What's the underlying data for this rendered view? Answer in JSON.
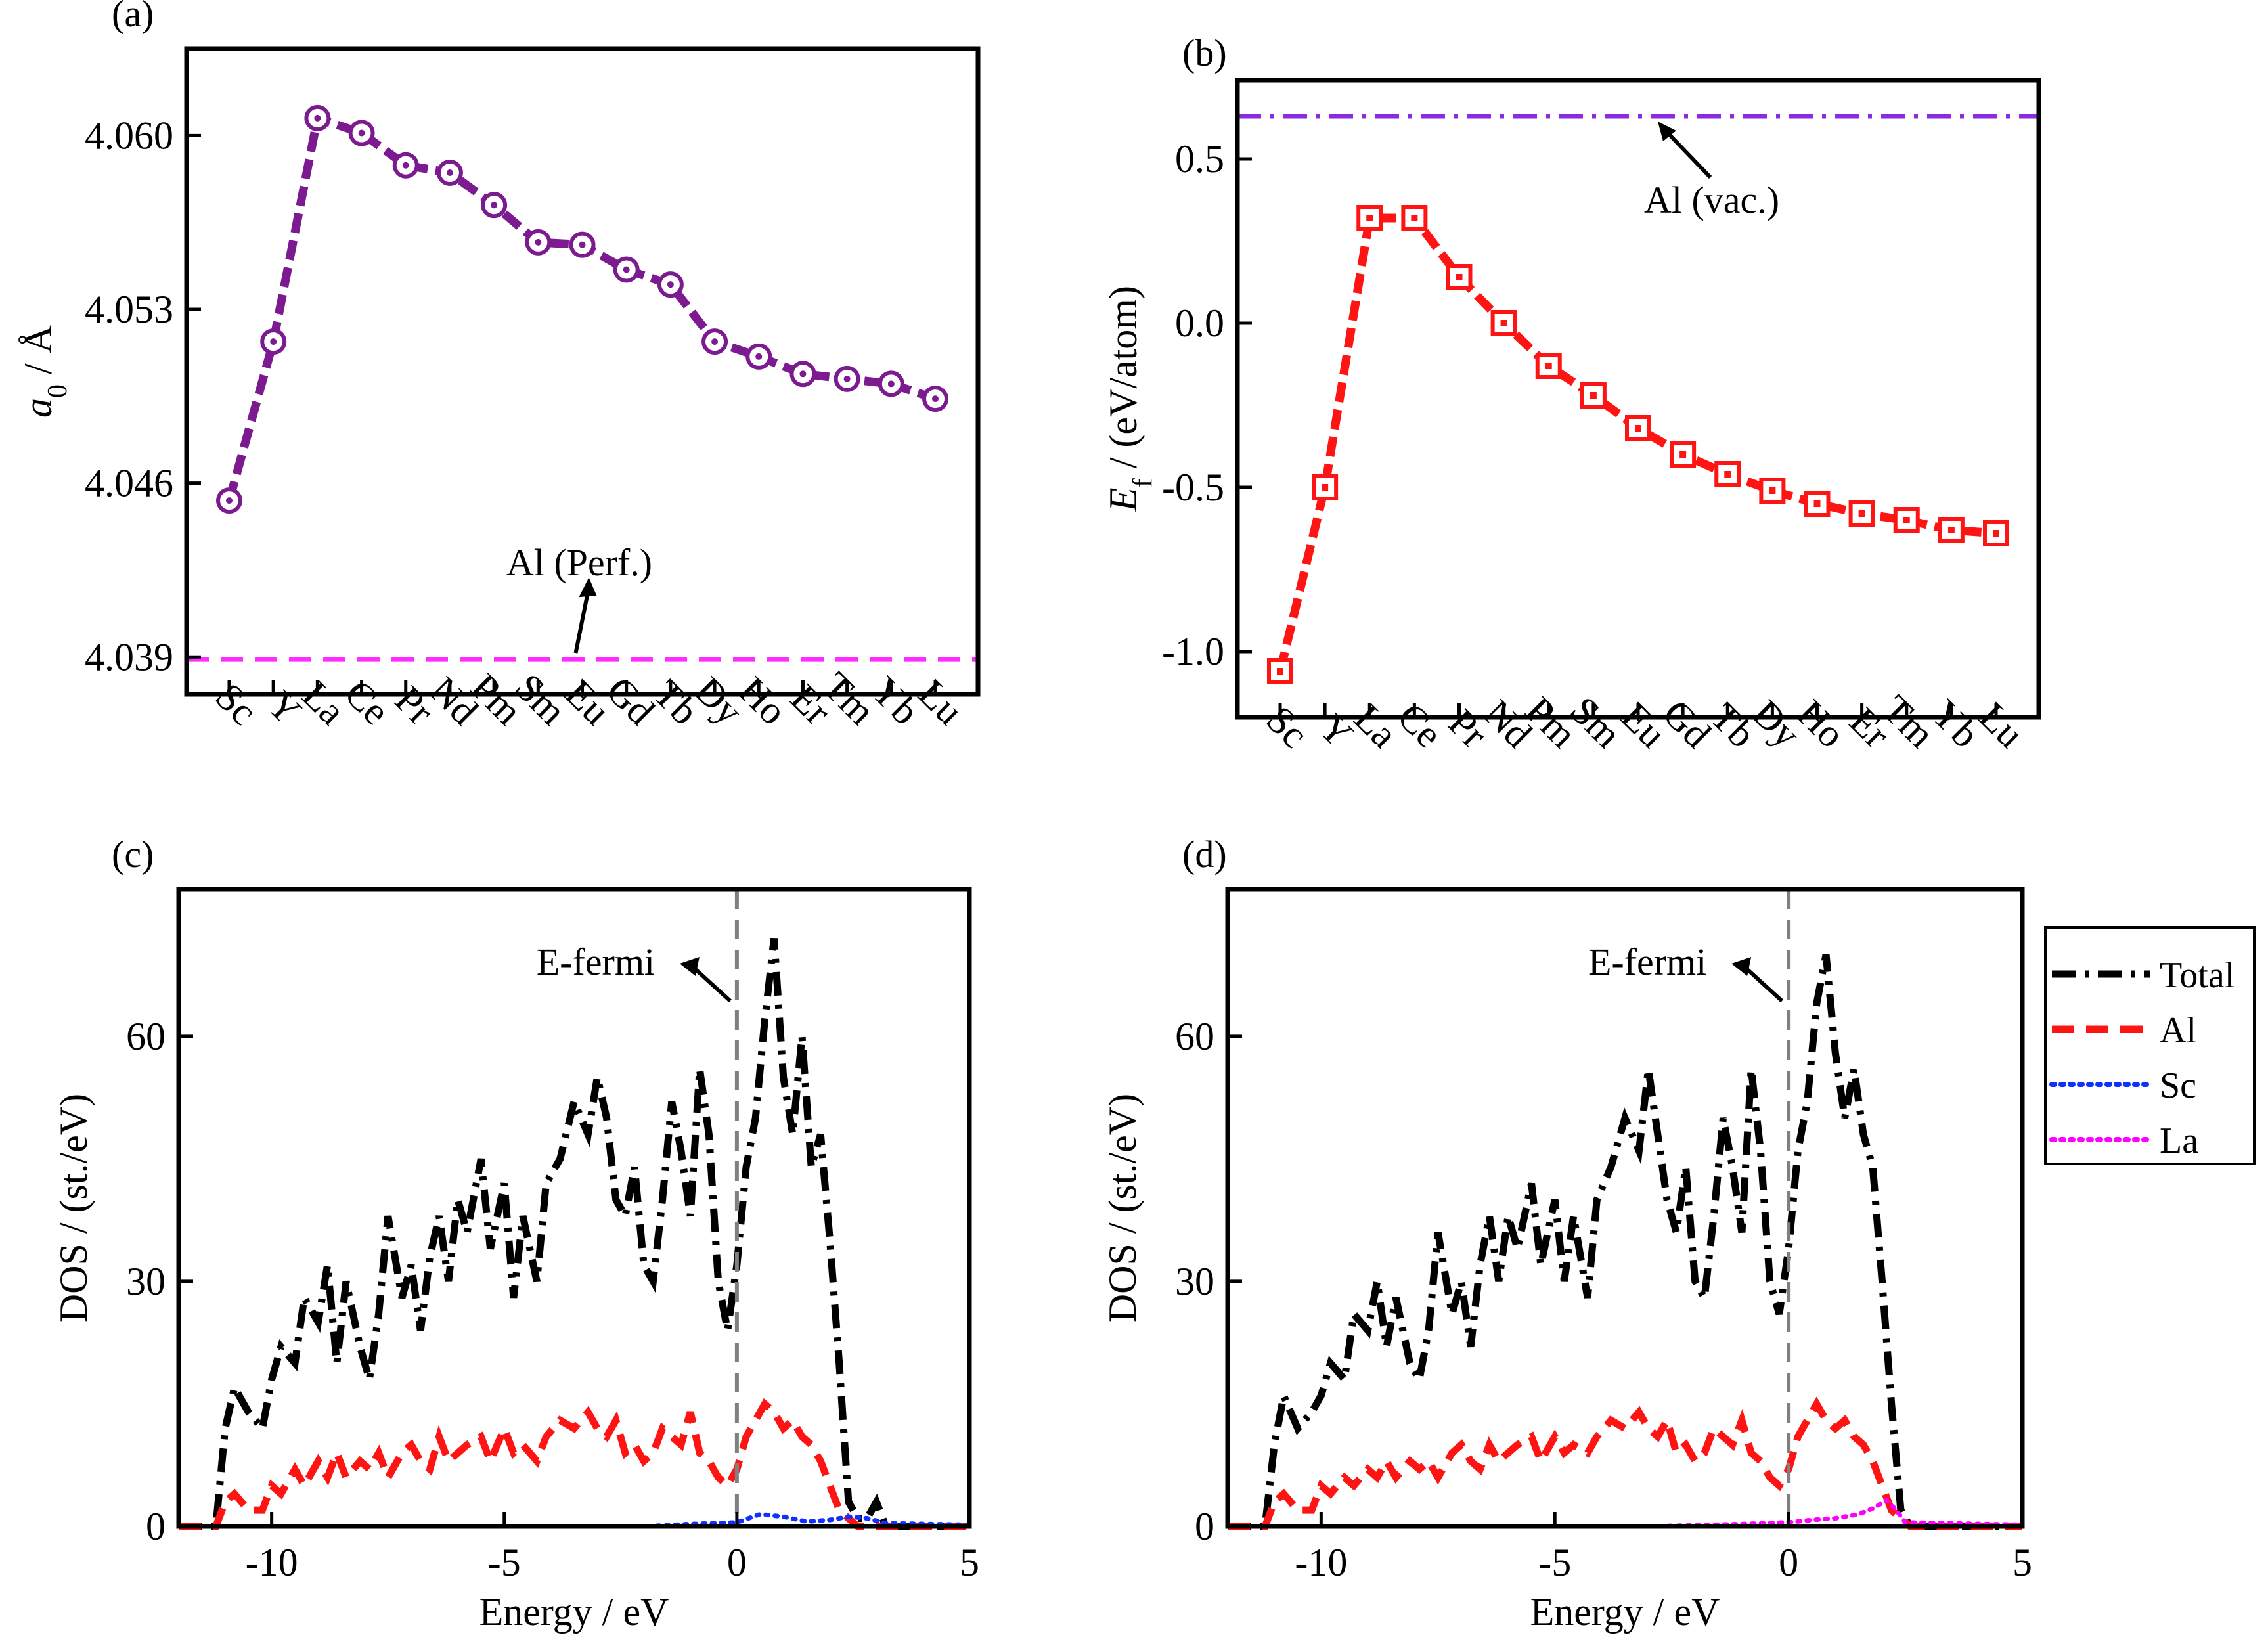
{
  "chart_data": [
    {
      "panel": "(a)",
      "type": "line",
      "xlabel": "",
      "ylabel_var": "a",
      "ylabel_sub": "0",
      "ylabel_rest": " / Å",
      "categories": [
        "Sc",
        "Y",
        "La",
        "Ce",
        "Pr",
        "Nd",
        "Pm",
        "Sm",
        "Eu",
        "Gd",
        "Tb",
        "Dy",
        "Ho",
        "Er",
        "Tm",
        "Yb",
        "Lu"
      ],
      "values": [
        4.0453,
        4.0517,
        4.0607,
        4.0601,
        4.0588,
        4.0585,
        4.0572,
        4.0557,
        4.0556,
        4.0546,
        4.054,
        4.0517,
        4.0511,
        4.0504,
        4.0502,
        4.05,
        4.0494
      ],
      "ylim": [
        4.0375,
        4.0635
      ],
      "yticks": [
        "4.039",
        "4.046",
        "4.053",
        "4.060"
      ],
      "ytick_values": [
        4.039,
        4.046,
        4.053,
        4.06
      ],
      "series_color": "#7b1b8f",
      "marker": "circle-dot",
      "reference_line": {
        "label": "Al (Perf.)",
        "value": 4.0389,
        "color": "#ff2cff",
        "style": "dash"
      }
    },
    {
      "panel": "(b)",
      "type": "line",
      "xlabel": "",
      "ylabel_var": "E",
      "ylabel_sub": "f",
      "ylabel_rest": " / (eV/atom)",
      "categories": [
        "Sc",
        "Y",
        "La",
        "Ce",
        "Pr",
        "Nd",
        "Pm",
        "Sm",
        "Eu",
        "Gd",
        "Tb",
        "Dy",
        "Ho",
        "Er",
        "Tm",
        "Yb",
        "Lu"
      ],
      "values": [
        -1.06,
        -0.5,
        0.32,
        0.32,
        0.14,
        0.0,
        -0.13,
        -0.22,
        -0.32,
        -0.4,
        -0.46,
        -0.51,
        -0.55,
        -0.58,
        -0.6,
        -0.63,
        -0.64
      ],
      "ylim": [
        -1.2,
        0.74
      ],
      "yticks": [
        "-1.0",
        "-0.5",
        "0.0",
        "0.5"
      ],
      "ytick_values": [
        -1.0,
        -0.5,
        0.0,
        0.5
      ],
      "series_color": "#ff1414",
      "marker": "square-dot",
      "reference_line": {
        "label": "Al (vac.)",
        "value": 0.63,
        "color": "#8a2be2",
        "style": "dashdot"
      }
    },
    {
      "panel": "(c)",
      "type": "line",
      "xlabel": "Energy / eV",
      "ylabel": "DOS / (st./eV)",
      "xlim": [
        -12,
        5
      ],
      "ylim": [
        0,
        78
      ],
      "xticks": [
        "-10",
        "-5",
        "0",
        "5"
      ],
      "xtick_values": [
        -10,
        -5,
        0,
        5
      ],
      "yticks": [
        "0",
        "30",
        "60"
      ],
      "ytick_values": [
        0,
        30,
        60
      ],
      "fermi_label": "E-fermi",
      "series": [
        {
          "name": "Total",
          "color": "#000000",
          "style": "dashdot",
          "x": [
            -12,
            -11.2,
            -11.0,
            -10.8,
            -10.5,
            -10.2,
            -10.0,
            -9.8,
            -9.5,
            -9.3,
            -9.0,
            -8.8,
            -8.6,
            -8.4,
            -8.1,
            -7.9,
            -7.7,
            -7.5,
            -7.2,
            -7.0,
            -6.8,
            -6.6,
            -6.4,
            -6.2,
            -6.0,
            -5.8,
            -5.5,
            -5.3,
            -5.0,
            -4.8,
            -4.6,
            -4.3,
            -4.1,
            -3.8,
            -3.5,
            -3.2,
            -3.0,
            -2.8,
            -2.6,
            -2.4,
            -2.2,
            -2.0,
            -1.8,
            -1.6,
            -1.4,
            -1.2,
            -1.0,
            -0.8,
            -0.6,
            -0.4,
            -0.2,
            0.0,
            0.2,
            0.4,
            0.6,
            0.8,
            1.0,
            1.2,
            1.4,
            1.6,
            1.8,
            2.0,
            2.2,
            2.4,
            2.6,
            2.8,
            3.0,
            3.2,
            5
          ],
          "y": [
            0,
            0,
            12,
            17,
            14,
            12,
            18,
            22,
            20,
            28,
            25,
            32,
            20,
            30,
            22,
            18,
            26,
            38,
            28,
            32,
            24,
            33,
            38,
            30,
            40,
            36,
            45,
            34,
            42,
            28,
            38,
            30,
            42,
            45,
            52,
            48,
            55,
            50,
            40,
            38,
            44,
            32,
            30,
            40,
            52,
            46,
            38,
            56,
            48,
            30,
            24,
            32,
            44,
            50,
            62,
            72,
            55,
            48,
            60,
            44,
            48,
            35,
            20,
            3,
            1,
            1,
            3,
            0,
            0
          ]
        },
        {
          "name": "Al",
          "color": "#ff1414",
          "style": "dash",
          "x": [
            -12,
            -11.2,
            -11.0,
            -10.8,
            -10.5,
            -10.2,
            -10.0,
            -9.8,
            -9.5,
            -9.3,
            -9.0,
            -8.8,
            -8.6,
            -8.4,
            -8.1,
            -7.9,
            -7.7,
            -7.5,
            -7.2,
            -7.0,
            -6.8,
            -6.6,
            -6.4,
            -6.2,
            -6.0,
            -5.8,
            -5.5,
            -5.3,
            -5.0,
            -4.8,
            -4.6,
            -4.3,
            -4.1,
            -3.8,
            -3.5,
            -3.2,
            -3.0,
            -2.8,
            -2.6,
            -2.4,
            -2.2,
            -2.0,
            -1.8,
            -1.6,
            -1.4,
            -1.2,
            -1.0,
            -0.8,
            -0.6,
            -0.4,
            -0.2,
            0.0,
            0.2,
            0.4,
            0.6,
            0.8,
            1.0,
            1.2,
            1.4,
            1.6,
            1.8,
            2.0,
            2.2,
            2.4,
            2.6,
            5
          ],
          "y": [
            0,
            0,
            3,
            4,
            2,
            2,
            5,
            4,
            7,
            5,
            8,
            6,
            9,
            6,
            8,
            7,
            9,
            6,
            9,
            10,
            8,
            7,
            11,
            8,
            9,
            10,
            11,
            8,
            12,
            9,
            10,
            8,
            11,
            13,
            12,
            14,
            12,
            11,
            13,
            9,
            10,
            8,
            9,
            12,
            11,
            10,
            14,
            9,
            8,
            6,
            5,
            7,
            11,
            13,
            15,
            14,
            12,
            13,
            11,
            10,
            8,
            5,
            2,
            1,
            0,
            0
          ]
        },
        {
          "name": "Sc",
          "color": "#1030ff",
          "style": "dot",
          "x": [
            -12,
            -2,
            -1,
            0,
            0.5,
            1,
            1.5,
            2,
            2.4,
            2.8,
            3.2,
            5
          ],
          "y": [
            0,
            0,
            0.3,
            0.5,
            1.5,
            1.2,
            0.6,
            0.8,
            1.2,
            1,
            0.4,
            0.2
          ]
        }
      ]
    },
    {
      "panel": "(d)",
      "type": "line",
      "xlabel": "Energy / eV",
      "ylabel": "DOS / (st./eV)",
      "xlim": [
        -12,
        5
      ],
      "ylim": [
        0,
        78
      ],
      "xticks": [
        "-10",
        "-5",
        "0",
        "5"
      ],
      "xtick_values": [
        -10,
        -5,
        0,
        5
      ],
      "yticks": [
        "0",
        "30",
        "60"
      ],
      "ytick_values": [
        0,
        30,
        60
      ],
      "fermi_label": "E-fermi",
      "series": [
        {
          "name": "Total",
          "color": "#000000",
          "style": "dashdot",
          "x": [
            -12,
            -11.2,
            -11.0,
            -10.8,
            -10.5,
            -10.2,
            -10.0,
            -9.8,
            -9.5,
            -9.3,
            -9.0,
            -8.8,
            -8.6,
            -8.4,
            -8.1,
            -7.9,
            -7.7,
            -7.5,
            -7.2,
            -7.0,
            -6.8,
            -6.6,
            -6.4,
            -6.2,
            -6.0,
            -5.8,
            -5.5,
            -5.3,
            -5.0,
            -4.8,
            -4.6,
            -4.3,
            -4.1,
            -3.8,
            -3.5,
            -3.2,
            -3.0,
            -2.8,
            -2.6,
            -2.4,
            -2.2,
            -2.0,
            -1.8,
            -1.6,
            -1.4,
            -1.2,
            -1.0,
            -0.8,
            -0.6,
            -0.4,
            -0.2,
            0.0,
            0.2,
            0.4,
            0.6,
            0.8,
            1.0,
            1.2,
            1.4,
            1.6,
            1.8,
            2.0,
            2.2,
            2.4,
            2.6,
            5
          ],
          "y": [
            0,
            0,
            10,
            16,
            12,
            14,
            16,
            20,
            18,
            26,
            24,
            30,
            22,
            28,
            20,
            18,
            24,
            36,
            26,
            30,
            22,
            32,
            38,
            30,
            38,
            34,
            42,
            32,
            40,
            30,
            38,
            28,
            40,
            44,
            50,
            46,
            56,
            48,
            40,
            36,
            44,
            30,
            28,
            38,
            50,
            44,
            36,
            56,
            46,
            30,
            26,
            34,
            46,
            52,
            64,
            70,
            58,
            50,
            56,
            48,
            44,
            30,
            15,
            2,
            0,
            0
          ]
        },
        {
          "name": "Al",
          "color": "#ff1414",
          "style": "dash",
          "x": [
            -12,
            -11.2,
            -11.0,
            -10.8,
            -10.5,
            -10.2,
            -10.0,
            -9.8,
            -9.5,
            -9.3,
            -9.0,
            -8.8,
            -8.6,
            -8.4,
            -8.1,
            -7.9,
            -7.7,
            -7.5,
            -7.2,
            -7.0,
            -6.8,
            -6.6,
            -6.4,
            -6.2,
            -6.0,
            -5.8,
            -5.5,
            -5.3,
            -5.0,
            -4.8,
            -4.6,
            -4.3,
            -4.1,
            -3.8,
            -3.5,
            -3.2,
            -3.0,
            -2.8,
            -2.6,
            -2.4,
            -2.2,
            -2.0,
            -1.8,
            -1.6,
            -1.4,
            -1.2,
            -1.0,
            -0.8,
            -0.6,
            -0.4,
            -0.2,
            0.0,
            0.2,
            0.4,
            0.6,
            0.8,
            1.0,
            1.2,
            1.4,
            1.6,
            1.8,
            2.0,
            2.2,
            2.4,
            2.6,
            5
          ],
          "y": [
            0,
            0,
            3,
            4,
            2,
            2,
            5,
            4,
            6,
            5,
            7,
            6,
            8,
            6,
            8,
            7,
            8,
            6,
            9,
            10,
            8,
            7,
            10,
            8,
            9,
            10,
            11,
            8,
            11,
            9,
            10,
            9,
            11,
            13,
            12,
            14,
            12,
            11,
            13,
            9,
            10,
            8,
            9,
            12,
            11,
            10,
            13,
            9,
            8,
            6,
            5,
            7,
            11,
            13,
            15,
            13,
            12,
            13,
            11,
            10,
            8,
            5,
            2,
            1,
            0,
            0
          ]
        },
        {
          "name": "La",
          "color": "#ff00ff",
          "style": "dot",
          "x": [
            -12,
            -3,
            -1,
            0,
            0.5,
            1,
            1.5,
            1.8,
            2.1,
            2.3,
            2.5,
            5
          ],
          "y": [
            0,
            0,
            0.3,
            0.5,
            0.8,
            1.0,
            1.5,
            2.2,
            3.2,
            2,
            0.5,
            0.2
          ]
        }
      ],
      "legend": {
        "placement": "right",
        "entries": [
          {
            "label": "Total",
            "color": "#000000",
            "style": "dashdot"
          },
          {
            "label": "Al",
            "color": "#ff1414",
            "style": "dash"
          },
          {
            "label": "Sc",
            "color": "#1030ff",
            "style": "dot"
          },
          {
            "label": "La",
            "color": "#ff00ff",
            "style": "dot"
          }
        ]
      }
    }
  ]
}
